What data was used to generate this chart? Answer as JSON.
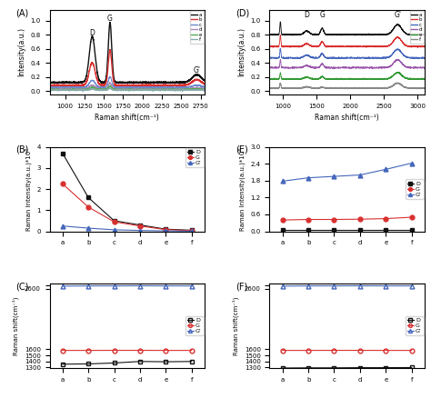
{
  "panel_A": {
    "title": "(A)",
    "xlabel": "Raman shift(cm⁻¹)",
    "ylabel": "Intensity(a.u.)",
    "xlim": [
      800,
      2800
    ],
    "ylim": [
      -0.05,
      1.15
    ],
    "yticks": [
      0.0,
      0.2,
      0.4,
      0.6,
      0.8,
      1.0
    ],
    "series_labels": [
      "a",
      "b",
      "c",
      "d",
      "e",
      "f"
    ],
    "series_colors": [
      "#111111",
      "#d93030",
      "#6688cc",
      "#aa88bb",
      "#55aa55",
      "#88aaaa"
    ],
    "base_offsets": [
      0.12,
      0.08,
      0.05,
      0.03,
      0.02,
      0.01
    ],
    "D_heights": [
      0.65,
      0.32,
      0.1,
      0.05,
      0.03,
      0.015
    ],
    "G_heights": [
      0.85,
      0.5,
      0.15,
      0.08,
      0.05,
      0.025
    ],
    "G2_heights": [
      0.11,
      0.08,
      0.03,
      0.015,
      0.008,
      0.004
    ]
  },
  "panel_D": {
    "title": "(D)",
    "xlabel": "Raman shift(cm⁻¹)",
    "ylabel": "Intensity(a.u.)",
    "xlim": [
      800,
      3100
    ],
    "ylim": [
      -0.05,
      1.15
    ],
    "yticks": [
      0.0,
      0.2,
      0.4,
      0.6,
      0.8,
      1.0
    ],
    "series_labels": [
      "a",
      "b",
      "c",
      "d",
      "e",
      "f"
    ],
    "series_colors": [
      "#111111",
      "#d93030",
      "#4466bb",
      "#9955aa",
      "#339933",
      "#888888"
    ],
    "base_offsets": [
      0.8,
      0.63,
      0.47,
      0.33,
      0.17,
      0.04
    ],
    "D_heights_add": [
      0.05,
      0.04,
      0.04,
      0.03,
      0.025,
      0.02
    ],
    "G_heights_add": [
      0.09,
      0.07,
      0.06,
      0.055,
      0.035,
      0.015
    ],
    "G2_heights_add": [
      0.14,
      0.13,
      0.12,
      0.11,
      0.09,
      0.07
    ],
    "Si_heights_add": [
      0.18,
      0.16,
      0.13,
      0.11,
      0.09,
      0.07
    ]
  },
  "panel_B": {
    "title": "(B)",
    "ylabel": "Raman Intensity(a.u.)*10⁶",
    "xlabels": [
      "a",
      "b",
      "c",
      "d",
      "e",
      "f"
    ],
    "ylim": [
      0,
      4
    ],
    "yticks": [
      0,
      1,
      2,
      3,
      4
    ],
    "D_vals": [
      3.7,
      1.6,
      0.5,
      0.3,
      0.1,
      0.05
    ],
    "G_vals": [
      2.25,
      1.15,
      0.45,
      0.25,
      0.08,
      0.03
    ],
    "G2_vals": [
      0.25,
      0.15,
      0.07,
      0.04,
      0.02,
      0.005
    ],
    "D_color": "#111111",
    "G_color": "#d93030",
    "G2_color": "#4466bb",
    "D_marker": "s",
    "G_marker": "o",
    "G2_marker": "^"
  },
  "panel_E": {
    "title": "(E)",
    "ylabel": "Raman Intensity(a.u.)*10⁶",
    "xlabels": [
      "a",
      "b",
      "c",
      "d",
      "e",
      "f"
    ],
    "ylim": [
      0,
      3.0
    ],
    "yticks": [
      0.0,
      0.6,
      1.2,
      1.8,
      2.4,
      3.0
    ],
    "D_vals": [
      0.04,
      0.04,
      0.04,
      0.04,
      0.04,
      0.04
    ],
    "G_vals": [
      0.4,
      0.42,
      0.42,
      0.43,
      0.45,
      0.5
    ],
    "G2_vals": [
      1.78,
      1.9,
      1.95,
      2.0,
      2.2,
      2.42
    ],
    "D_color": "#111111",
    "G_color": "#d93030",
    "G2_color": "#4466bb",
    "D_marker": "s",
    "G_marker": "o",
    "G2_marker": "^"
  },
  "panel_C": {
    "title": "(C)",
    "ylabel": "Raman shift(cm⁻¹)",
    "xlabels": [
      "a",
      "b",
      "c",
      "d",
      "e",
      "f"
    ],
    "ylim": [
      1290,
      2680
    ],
    "yticks": [
      1300,
      1400,
      1500,
      1600,
      2600,
      2650
    ],
    "yticklabels": [
      "1300",
      "1400",
      "1500",
      "1600",
      "2600",
      ""
    ],
    "D_vals": [
      1355,
      1360,
      1375,
      1400,
      1395,
      1400
    ],
    "G_vals": [
      1582,
      1582,
      1583,
      1583,
      1582,
      1582
    ],
    "G2_vals": [
      2640,
      2643,
      2643,
      2645,
      2643,
      2643
    ],
    "D_color": "#111111",
    "G_color": "#d93030",
    "G2_color": "#4466bb",
    "D_marker": "s",
    "G_marker": "o",
    "G2_marker": "^",
    "D_label": "D",
    "G_label": "G",
    "G2_label": "G'"
  },
  "panel_F": {
    "title": "(F)",
    "ylabel": "Raman shift(cm⁻¹)",
    "xlabels": [
      "a",
      "b",
      "c",
      "d",
      "e",
      "f"
    ],
    "ylim": [
      1290,
      2680
    ],
    "yticks": [
      1300,
      1400,
      1500,
      1600,
      2600,
      2650
    ],
    "yticklabels": [
      "1300",
      "1400",
      "1500",
      "1600",
      "2600",
      ""
    ],
    "D_vals": [
      1292,
      1295,
      1295,
      1298,
      1298,
      1300
    ],
    "G_vals": [
      1582,
      1582,
      1583,
      1583,
      1582,
      1582
    ],
    "G2_vals": [
      2640,
      2643,
      2643,
      2645,
      2643,
      2643
    ],
    "D_color": "#111111",
    "G_color": "#d93030",
    "G2_color": "#4466bb",
    "D_marker": "s",
    "G_marker": "o",
    "G2_marker": "^",
    "D_label": "D",
    "G_label": "G",
    "G2_label": "G'"
  }
}
